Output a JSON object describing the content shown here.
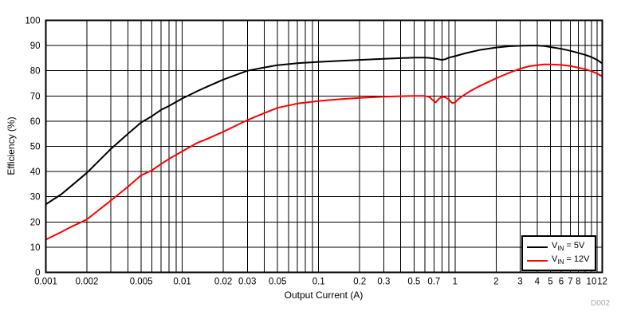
{
  "figure_id": "D002",
  "chart_data": {
    "type": "line",
    "title": "",
    "xlabel": "Output Current (A)",
    "ylabel": "Efficiency (%)",
    "x_scale": "log",
    "xlim": [
      0.001,
      12
    ],
    "ylim": [
      0,
      100
    ],
    "grid": "on",
    "legend_position": "lower right",
    "x_tick_labels": [
      "0.001",
      "0.002",
      "0.005",
      "0.01",
      "0.02",
      "0.03",
      "0.05",
      "0.1",
      "0.2",
      "0.3",
      "0.5",
      "0.7",
      "1",
      "2",
      "3",
      "4",
      "5",
      "6",
      "7",
      "8",
      "10",
      "12"
    ],
    "y_ticks": [
      0,
      10,
      20,
      30,
      40,
      50,
      60,
      70,
      80,
      90,
      100
    ],
    "series": [
      {
        "name": "VIN = 5V",
        "label": {
          "prefix": "V",
          "sub": "IN",
          "rest": " = 5V"
        },
        "color": "#000000",
        "points": [
          [
            0.001,
            27
          ],
          [
            0.0013,
            31
          ],
          [
            0.0015,
            33.8
          ],
          [
            0.002,
            39.5
          ],
          [
            0.003,
            49
          ],
          [
            0.004,
            55
          ],
          [
            0.005,
            59.5
          ],
          [
            0.006,
            62
          ],
          [
            0.007,
            64.5
          ],
          [
            0.008,
            66
          ],
          [
            0.009,
            67.6
          ],
          [
            0.01,
            69
          ],
          [
            0.013,
            72
          ],
          [
            0.015,
            73.5
          ],
          [
            0.02,
            76.5
          ],
          [
            0.03,
            80
          ],
          [
            0.04,
            81.3
          ],
          [
            0.05,
            82.2
          ],
          [
            0.07,
            83
          ],
          [
            0.1,
            83.5
          ],
          [
            0.15,
            84
          ],
          [
            0.2,
            84.3
          ],
          [
            0.3,
            84.7
          ],
          [
            0.4,
            85
          ],
          [
            0.5,
            85.2
          ],
          [
            0.6,
            85.2
          ],
          [
            0.65,
            85.1
          ],
          [
            0.7,
            84.9
          ],
          [
            0.75,
            84.6
          ],
          [
            0.8,
            84.3
          ],
          [
            0.85,
            84.6
          ],
          [
            0.9,
            85.2
          ],
          [
            1,
            85.8
          ],
          [
            1.2,
            87
          ],
          [
            1.5,
            88.2
          ],
          [
            2,
            89.2
          ],
          [
            2.5,
            89.7
          ],
          [
            3,
            89.9
          ],
          [
            3.5,
            90
          ],
          [
            4,
            90
          ],
          [
            4.5,
            89.8
          ],
          [
            5,
            89.4
          ],
          [
            6,
            88.7
          ],
          [
            7,
            87.9
          ],
          [
            8,
            87.1
          ],
          [
            9,
            86.3
          ],
          [
            10,
            85.4
          ],
          [
            11,
            84.3
          ],
          [
            12,
            82.9
          ]
        ]
      },
      {
        "name": "VIN = 12V",
        "label": {
          "prefix": "V",
          "sub": "IN",
          "rest": " = 12V"
        },
        "color": "#ff0000",
        "points": [
          [
            0.001,
            13
          ],
          [
            0.0013,
            16
          ],
          [
            0.0015,
            17.8
          ],
          [
            0.002,
            21
          ],
          [
            0.003,
            28.5
          ],
          [
            0.004,
            34
          ],
          [
            0.005,
            38.5
          ],
          [
            0.006,
            40.5
          ],
          [
            0.007,
            43
          ],
          [
            0.008,
            45
          ],
          [
            0.009,
            46.6
          ],
          [
            0.01,
            48
          ],
          [
            0.013,
            51.5
          ],
          [
            0.015,
            52.8
          ],
          [
            0.02,
            55.8
          ],
          [
            0.03,
            60.4
          ],
          [
            0.04,
            63.2
          ],
          [
            0.05,
            65.3
          ],
          [
            0.07,
            67
          ],
          [
            0.1,
            68
          ],
          [
            0.15,
            68.8
          ],
          [
            0.2,
            69.2
          ],
          [
            0.3,
            69.7
          ],
          [
            0.4,
            69.9
          ],
          [
            0.5,
            70
          ],
          [
            0.6,
            70
          ],
          [
            0.65,
            69.6
          ],
          [
            0.68,
            68.5
          ],
          [
            0.72,
            67.4
          ],
          [
            0.76,
            68.8
          ],
          [
            0.8,
            69.7
          ],
          [
            0.85,
            69.4
          ],
          [
            0.9,
            68.6
          ],
          [
            0.95,
            67.2
          ],
          [
            1,
            67.4
          ],
          [
            1.05,
            68.6
          ],
          [
            1.15,
            70.2
          ],
          [
            1.3,
            72
          ],
          [
            1.5,
            73.8
          ],
          [
            2,
            77
          ],
          [
            2.5,
            79.2
          ],
          [
            3,
            80.8
          ],
          [
            3.5,
            81.8
          ],
          [
            4,
            82.2
          ],
          [
            4.5,
            82.5
          ],
          [
            5,
            82.5
          ],
          [
            6,
            82.3
          ],
          [
            7,
            81.9
          ],
          [
            8,
            81.2
          ],
          [
            9,
            80.6
          ],
          [
            10,
            79.8
          ],
          [
            11,
            78.9
          ],
          [
            12,
            77.8
          ]
        ]
      }
    ]
  }
}
